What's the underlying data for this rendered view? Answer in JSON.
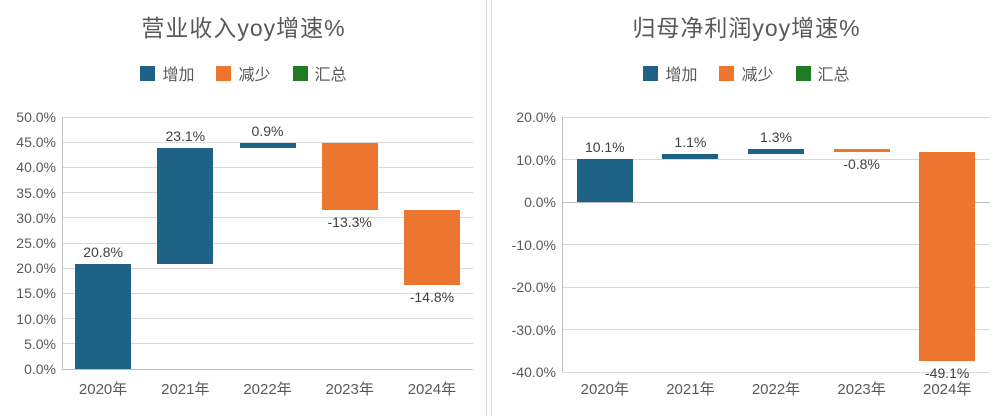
{
  "style": {
    "background": "#ffffff",
    "gridline_color": "#d9d9d9",
    "zero_line_color": "#bfbfbf",
    "axis_line_color": "#bfbfbf",
    "title_color": "#595959",
    "axis_text_color": "#595959",
    "data_label_color": "#404040",
    "divider_color": "#d9d9d9",
    "increase_color": "#1e6387",
    "decrease_color": "#ec7530",
    "total_color": "#1f7b24"
  },
  "chart_data": [
    {
      "type": "bar",
      "subtype": "waterfall",
      "title": "营业收入yoy增速%",
      "categories": [
        "2020年",
        "2021年",
        "2022年",
        "2023年",
        "2024年"
      ],
      "values": [
        20.8,
        23.1,
        0.9,
        -13.3,
        -14.8
      ],
      "data_labels": [
        "20.8%",
        "23.1%",
        "0.9%",
        "-13.3%",
        "-14.8%"
      ],
      "cumulative": [
        20.8,
        43.9,
        44.8,
        31.5,
        16.7
      ],
      "legend": [
        {
          "label": "增加",
          "color": "#1e6387"
        },
        {
          "label": "减少",
          "color": "#ec7530"
        },
        {
          "label": "汇总",
          "color": "#1f7b24"
        }
      ],
      "legend_position": "top",
      "grid": true,
      "xlabel": "",
      "ylabel": "",
      "ylim": [
        0,
        50
      ],
      "ytick_step": 5,
      "ytick_labels": [
        "50.0%",
        "45.0%",
        "40.0%",
        "35.0%",
        "30.0%",
        "25.0%",
        "20.0%",
        "15.0%",
        "10.0%",
        "5.0%",
        "0.0%"
      ]
    },
    {
      "type": "bar",
      "subtype": "waterfall",
      "title": "归母净利润yoy增速%",
      "categories": [
        "2020年",
        "2021年",
        "2022年",
        "2023年",
        "2024年"
      ],
      "values": [
        10.1,
        1.1,
        1.3,
        -0.8,
        -49.1
      ],
      "data_labels": [
        "10.1%",
        "1.1%",
        "1.3%",
        "-0.8%",
        "-49.1%"
      ],
      "cumulative": [
        10.1,
        11.2,
        12.5,
        11.7,
        -37.4
      ],
      "legend": [
        {
          "label": "增加",
          "color": "#1e6387"
        },
        {
          "label": "减少",
          "color": "#ec7530"
        },
        {
          "label": "汇总",
          "color": "#1f7b24"
        }
      ],
      "legend_position": "top",
      "grid": true,
      "xlabel": "",
      "ylabel": "",
      "ylim": [
        -40,
        20
      ],
      "ytick_step": 10,
      "ytick_labels": [
        "20.0%",
        "10.0%",
        "0.0%",
        "-10.0%",
        "-20.0%",
        "-30.0%",
        "-40.0%"
      ]
    }
  ]
}
